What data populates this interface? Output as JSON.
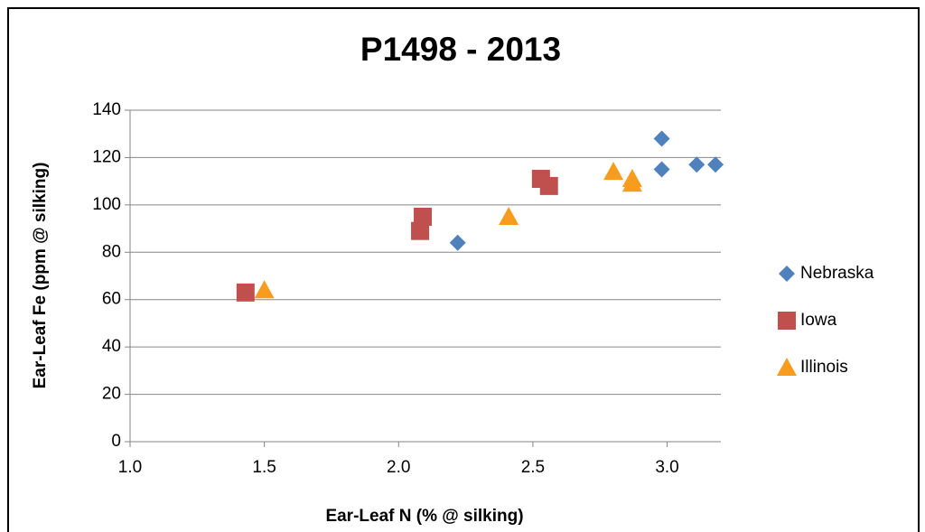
{
  "chart_data": {
    "type": "scatter",
    "title": "P1498  -  2013",
    "xlabel": "Ear-Leaf N (% @ silking)",
    "ylabel": "Ear-Leaf Fe (ppm @ silking)",
    "xlim": [
      1.0,
      3.2
    ],
    "xticks": [
      {
        "value": 1.0,
        "label": "1.0"
      },
      1.5,
      {
        "value": 2.0,
        "label": "2.0"
      },
      2.5,
      {
        "value": 3.0,
        "label": "3.0"
      }
    ],
    "ylim": [
      0,
      140
    ],
    "yticks": [
      0,
      20,
      40,
      60,
      80,
      100,
      120,
      140
    ],
    "grid": true,
    "series": [
      {
        "name": "Nebraska",
        "color": "#4f81bd",
        "marker": "diamond",
        "x": [
          2.22,
          2.98,
          2.98,
          3.11,
          3.18
        ],
        "values": [
          84,
          128,
          115,
          117,
          117
        ]
      },
      {
        "name": "Iowa",
        "color": "#c0504d",
        "marker": "square",
        "x": [
          1.43,
          2.08,
          2.09,
          2.53,
          2.56
        ],
        "values": [
          63,
          89,
          95,
          111,
          108
        ]
      },
      {
        "name": "Illinois",
        "color": "#f79c1c",
        "marker": "triangle",
        "x": [
          1.5,
          2.41,
          2.8,
          2.87,
          2.87
        ],
        "values": [
          64,
          95,
          114,
          109,
          111
        ]
      }
    ]
  }
}
